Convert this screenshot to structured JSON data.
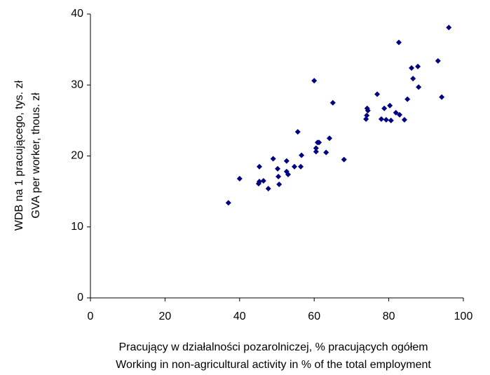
{
  "chart_data": {
    "type": "scatter",
    "x_label": [
      "Pracujący w działalności pozarolniczej, % pracujących ogółem",
      "Working in non-agricultural activity in % of the total employment"
    ],
    "y_label": [
      "WDB na 1 pracującego, tys. zł",
      "GVA per worker, thous. zł"
    ],
    "series": [
      {
        "color": "#000080",
        "x": [
          37.0,
          40.0,
          45.3,
          45.1,
          45.3,
          46.4,
          47.7,
          49.0,
          50.2,
          50.4,
          50.6,
          52.6,
          52.6,
          53.0,
          54.7,
          56.4,
          55.6,
          56.6,
          60.0,
          60.5,
          60.5,
          60.9,
          61.3,
          63.2,
          64.1,
          65.0,
          68.0,
          73.9,
          74.1,
          74.2,
          74.4,
          76.9,
          78.0,
          78.8,
          79.3,
          80.3,
          80.6,
          81.9,
          82.9,
          82.7,
          84.2,
          85.0,
          86.1,
          86.5,
          87.8,
          88.0,
          93.2,
          94.2,
          96.1
        ],
        "values": [
          13.4,
          16.8,
          18.5,
          16.1,
          16.4,
          16.5,
          15.4,
          19.6,
          18.2,
          17.1,
          16.0,
          19.3,
          17.8,
          17.4,
          18.5,
          18.5,
          23.4,
          20.1,
          30.6,
          20.6,
          21.1,
          21.9,
          21.9,
          20.5,
          22.5,
          27.5,
          19.5,
          25.2,
          25.7,
          26.7,
          26.4,
          28.7,
          25.2,
          26.7,
          25.1,
          27.1,
          25.0,
          26.1,
          25.8,
          36.0,
          25.1,
          28.0,
          32.4,
          30.9,
          32.6,
          29.7,
          33.4,
          28.3,
          38.1
        ]
      }
    ],
    "xlim": [
      0,
      100
    ],
    "xticks": [
      0,
      20,
      40,
      60,
      80,
      100
    ],
    "ylim": [
      0,
      40
    ],
    "yticks": [
      0,
      10,
      20,
      30,
      40
    ],
    "grid": false
  }
}
